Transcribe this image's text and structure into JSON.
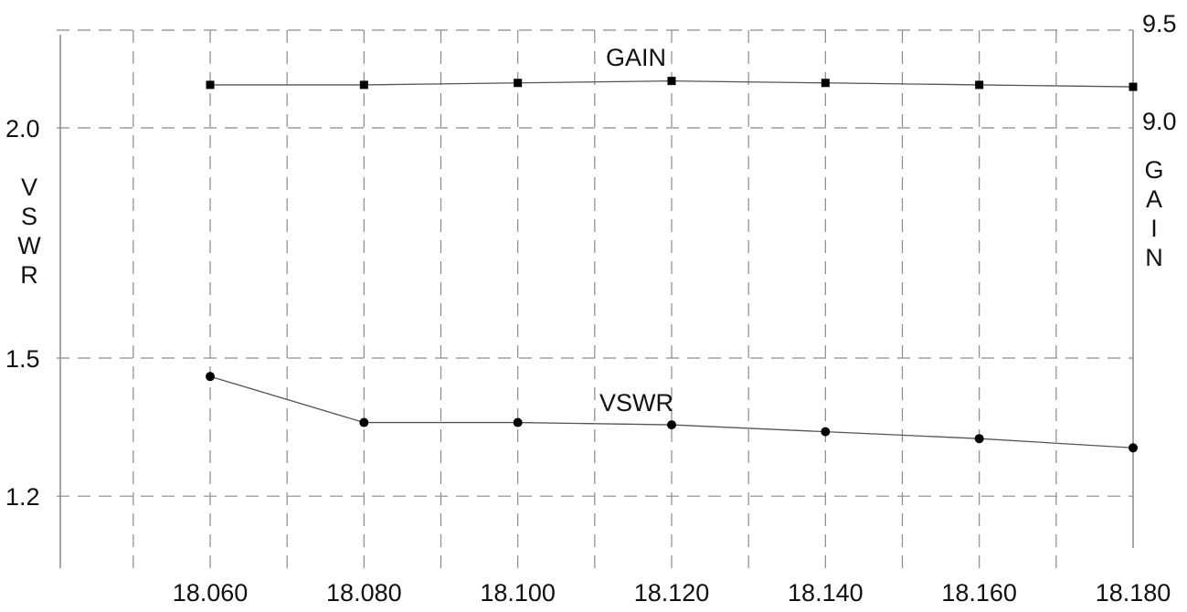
{
  "chart_data": {
    "type": "line",
    "title": "",
    "x": [
      18.06,
      18.08,
      18.1,
      18.12,
      18.14,
      18.16,
      18.18
    ],
    "x_tick_labels": [
      "18.060",
      "18.080",
      "18.100",
      "18.120",
      "18.140",
      "18.160",
      "18.180"
    ],
    "left_axis": {
      "label": "VSWR",
      "tick_labels": [
        "2.0",
        "1.5",
        "1.2"
      ],
      "tick_values": [
        2.0,
        1.5,
        1.2
      ]
    },
    "right_axis": {
      "label": "GAIN",
      "tick_labels": [
        "9.5",
        "9.0"
      ],
      "tick_values": [
        9.5,
        9.0
      ]
    },
    "grid": true,
    "series": [
      {
        "name": "GAIN",
        "axis": "right",
        "marker": "square",
        "values": [
          9.22,
          9.22,
          9.23,
          9.24,
          9.23,
          9.22,
          9.21
        ]
      },
      {
        "name": "VSWR",
        "axis": "left",
        "marker": "circle",
        "values": [
          1.46,
          1.36,
          1.36,
          1.355,
          1.34,
          1.325,
          1.305
        ]
      }
    ]
  }
}
